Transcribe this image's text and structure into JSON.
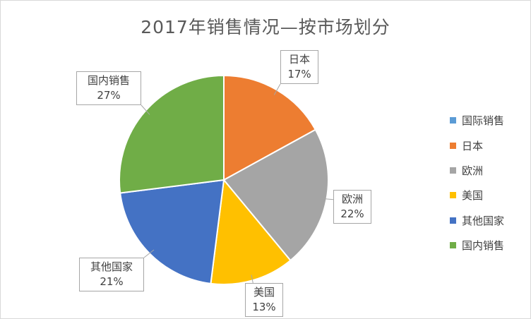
{
  "chart_data": {
    "type": "pie",
    "title": "2017年销售情况—按市场划分",
    "legend_position": "right",
    "slices": [
      {
        "name": "国际销售",
        "value": 0,
        "label": "",
        "color": "#5b9bd5"
      },
      {
        "name": "日本",
        "value": 17,
        "label": "17%",
        "color": "#ed7d31"
      },
      {
        "name": "欧洲",
        "value": 22,
        "label": "22%",
        "color": "#a5a5a5"
      },
      {
        "name": "美国",
        "value": 13,
        "label": "13%",
        "color": "#ffc000"
      },
      {
        "name": "其他国家",
        "value": 21,
        "label": "21%",
        "color": "#4472c4"
      },
      {
        "name": "国内销售",
        "value": 27,
        "label": "27%",
        "color": "#70ad47"
      }
    ]
  }
}
